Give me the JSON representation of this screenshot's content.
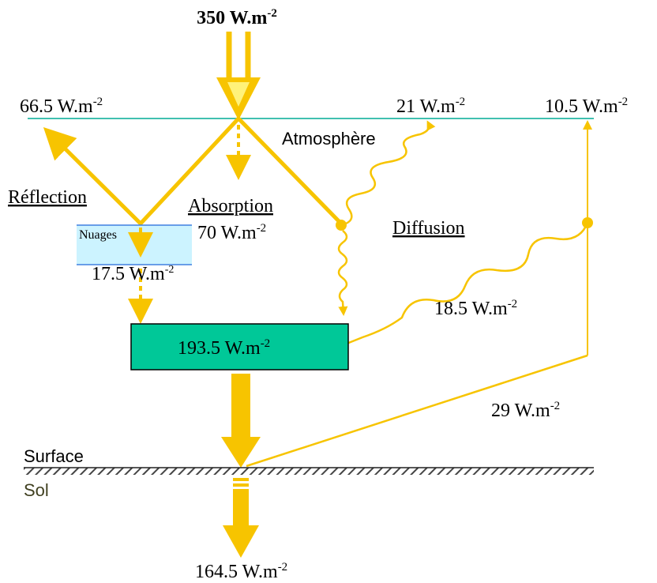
{
  "incoming": {
    "text": "350 W.m",
    "exp": "-2"
  },
  "reflected": {
    "text": "66.5 W.m",
    "exp": "-2"
  },
  "diffused_up": {
    "text": "21 W.m",
    "exp": "-2"
  },
  "emitted_up": {
    "text": "10.5 W.m",
    "exp": "-2"
  },
  "atmosphere": "Atmosphère",
  "reflection": "Réflection",
  "absorption": {
    "title": "Absorption",
    "text": "70 W.m",
    "exp": "-2"
  },
  "diffusion": "Diffusion",
  "clouds": {
    "title": "Nuages",
    "text": "17.5 W.m",
    "exp": "-2"
  },
  "received": {
    "text": "193.5 W.m",
    "exp": "-2"
  },
  "diffused_down": {
    "text": "18.5 W.m",
    "exp": "-2"
  },
  "surface_return": {
    "text": "29 W.m",
    "exp": "-2"
  },
  "surface": "Surface",
  "ground": "Sol",
  "absorbed_ground": {
    "text": "164.5 W.m",
    "exp": "-2"
  }
}
